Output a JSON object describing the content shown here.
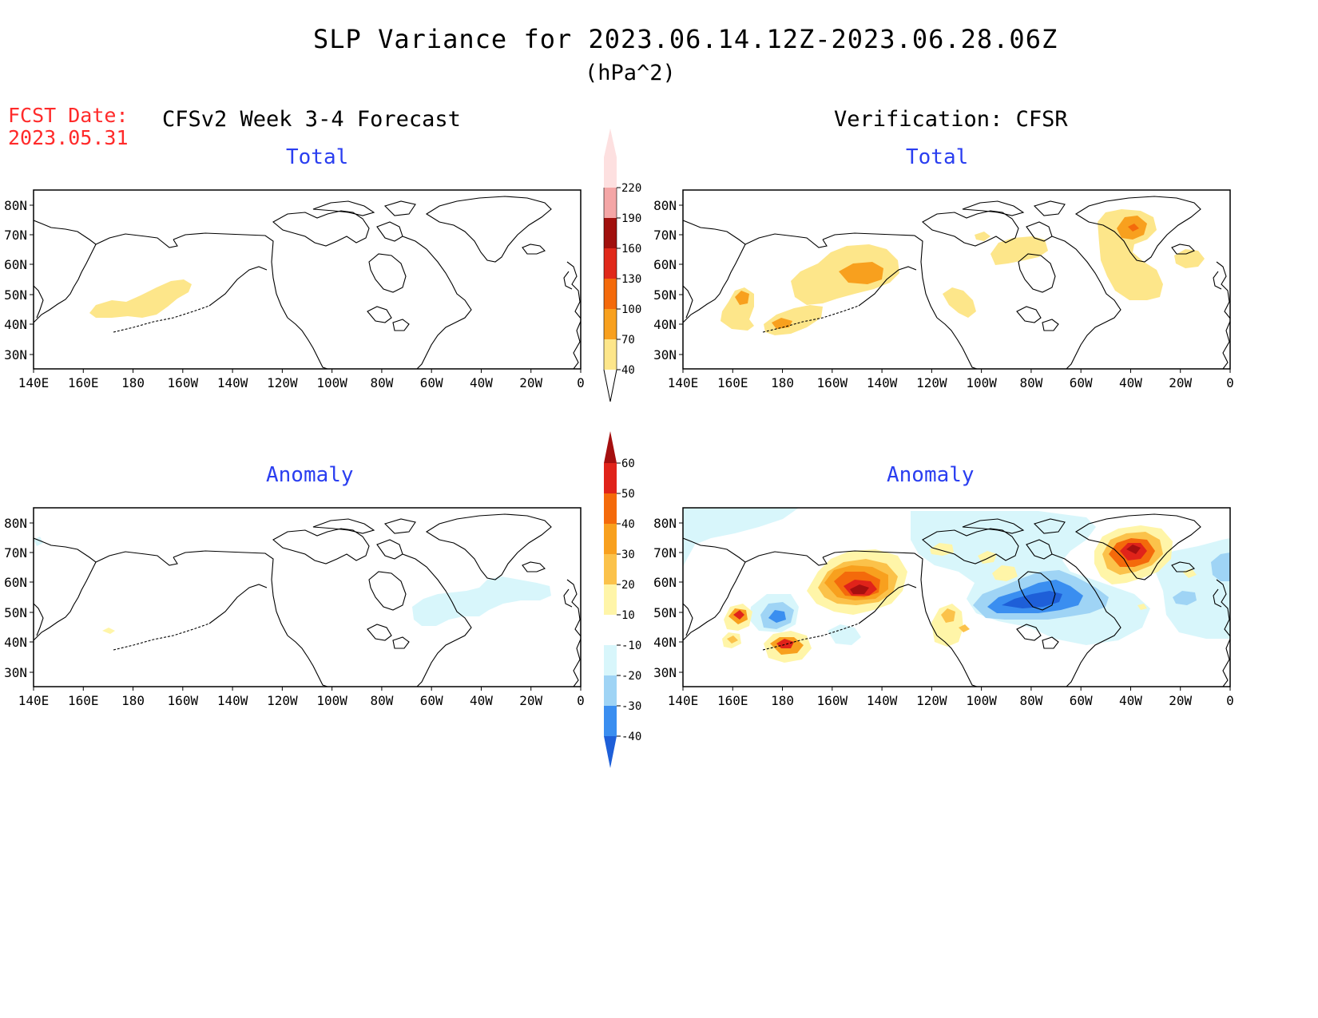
{
  "header": {
    "title": "SLP Variance for 2023.06.14.12Z-2023.06.28.06Z",
    "units": "(hPa^2)",
    "fcst_label": "FCST Date:",
    "fcst_date": "2023.05.31",
    "left_title": "CFSv2 Week 3-4 Forecast",
    "right_title": "Verification: CFSR"
  },
  "panels": {
    "total_label": "Total",
    "anomaly_label": "Anomaly"
  },
  "axes": {
    "lat_labels": [
      "80N",
      "70N",
      "60N",
      "50N",
      "40N",
      "30N"
    ],
    "lon_labels": [
      "140E",
      "160E",
      "180",
      "160W",
      "140W",
      "120W",
      "100W",
      "80W",
      "60W",
      "40W",
      "20W",
      "0"
    ]
  },
  "colorbars": {
    "total": {
      "levels": [
        "40",
        "70",
        "100",
        "130",
        "160",
        "190",
        "220"
      ],
      "colors": [
        "#fde68a",
        "#f8a01e",
        "#f46a0b",
        "#e0291a",
        "#a0100d",
        "#f4a6a6",
        "#fde0e0"
      ]
    },
    "anomaly": {
      "levels": [
        "60",
        "50",
        "40",
        "30",
        "20",
        "10",
        "-10",
        "-20",
        "-30",
        "-40"
      ],
      "colors": [
        "#a50f0f",
        "#e0231a",
        "#f46a0b",
        "#f8a01e",
        "#fbc24a",
        "#fff5a8",
        "#ffffff",
        "#d8f6fb",
        "#9fd4f5",
        "#3a8ef0",
        "#1e5fd8"
      ]
    }
  },
  "colors": {
    "title_text": "#000000",
    "fcst_text": "#ff2a2a",
    "panel_label": "#2a3ef0"
  }
}
